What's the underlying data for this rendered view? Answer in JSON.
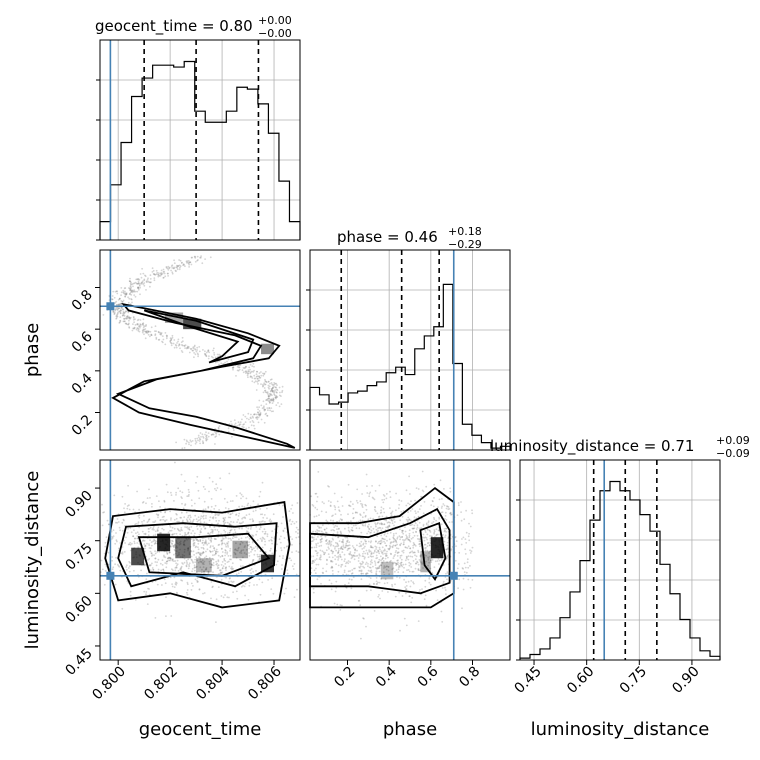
{
  "chart_data": {
    "type": "corner",
    "parameters": [
      "geocent_time",
      "phase",
      "luminosity_distance"
    ],
    "axis_labels": {
      "geocent_time": "geocent_time",
      "phase": "phase",
      "luminosity_distance": "luminosity_distance"
    },
    "titles": [
      {
        "param": "geocent_time",
        "text": "geocent_time = 0.80",
        "sup": "+0.00",
        "sub": "−0.00"
      },
      {
        "param": "phase",
        "text": "phase = 0.46",
        "sup": "+0.18",
        "sub": "−0.29"
      },
      {
        "param": "luminosity_distance",
        "text": "luminosity_distance = 0.71",
        "sup": "+0.09",
        "sub": "−0.09"
      }
    ],
    "ranges": {
      "geocent_time": [
        0.7993,
        0.807
      ],
      "phase": [
        0.02,
        0.98
      ],
      "luminosity_distance": [
        0.41,
        0.98
      ]
    },
    "ticks": {
      "geocent_time": {
        "values": [
          0.8,
          0.802,
          0.804,
          0.806
        ],
        "labels": [
          "0.800",
          "0.802",
          "0.804",
          "0.806"
        ]
      },
      "phase": {
        "values": [
          0.2,
          0.4,
          0.6,
          0.8
        ],
        "labels": [
          "0.2",
          "0.4",
          "0.6",
          "0.8"
        ]
      },
      "luminosity_distance": {
        "values": [
          0.45,
          0.6,
          0.75,
          0.9
        ],
        "labels": [
          "0.45",
          "0.60",
          "0.75",
          "0.90"
        ]
      }
    },
    "truths": {
      "geocent_time": 0.7997,
      "phase": 0.71,
      "luminosity_distance": 0.65
    },
    "quantiles": {
      "geocent_time": [
        0.801,
        0.803,
        0.8054
      ],
      "phase": [
        0.17,
        0.46,
        0.64
      ],
      "luminosity_distance": [
        0.62,
        0.71,
        0.8
      ]
    },
    "histograms": {
      "geocent_time": [
        0.1,
        0.3,
        0.53,
        0.78,
        0.88,
        0.95,
        0.95,
        0.94,
        0.97,
        0.7,
        0.64,
        0.64,
        0.7,
        0.83,
        0.82,
        0.74,
        0.58,
        0.32,
        0.1
      ],
      "phase": [
        0.34,
        0.3,
        0.25,
        0.26,
        0.31,
        0.32,
        0.35,
        0.37,
        0.42,
        0.45,
        0.41,
        0.55,
        0.62,
        0.67,
        0.9,
        0.47,
        0.14,
        0.08,
        0.04,
        0.01,
        0.02
      ],
      "luminosity_distance": [
        0.01,
        0.03,
        0.06,
        0.12,
        0.23,
        0.37,
        0.54,
        0.76,
        0.92,
        0.97,
        0.92,
        0.87,
        0.79,
        0.7,
        0.52,
        0.36,
        0.22,
        0.12,
        0.05,
        0.02
      ]
    },
    "grid": true,
    "truth_color": "#4682b4"
  }
}
